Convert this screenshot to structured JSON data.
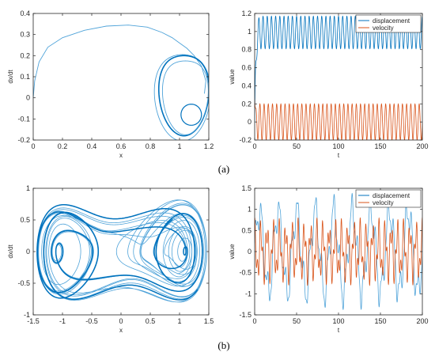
{
  "colors": {
    "blue": "#0072bd",
    "lightblue": "#4fa3d9",
    "orange": "#d95319",
    "axis": "#262626"
  },
  "row_labels": [
    "(a)",
    "(b)"
  ],
  "chart_data": [
    {
      "type": "line",
      "xlabel": "x",
      "ylabel": "dx/dt",
      "xlim": [
        0,
        1.2
      ],
      "ylim": [
        -0.2,
        0.4
      ],
      "xticks": [
        "0",
        "0.2",
        "0.4",
        "0.6",
        "0.8",
        "1",
        "1.2"
      ],
      "yticks": [
        "-0.2",
        "-0.1",
        "0",
        "0.1",
        "0.2",
        "0.3",
        "0.4"
      ],
      "series": [
        {
          "transient": {
            "x": [
              0,
              0.01,
              0.04,
              0.1,
              0.2,
              0.35,
              0.5,
              0.65,
              0.78,
              0.88,
              0.95,
              1.0,
              1.05,
              1.1,
              1.15,
              1.18,
              1.17
            ],
            "y": [
              0,
              0.08,
              0.17,
              0.24,
              0.285,
              0.32,
              0.34,
              0.345,
              0.335,
              0.31,
              0.285,
              0.26,
              0.235,
              0.2,
              0.15,
              0.08,
              0.02
            ]
          },
          "attractor": {
            "center": [
              1.02,
              0.03
            ],
            "rx": 0.17,
            "ry": 0.18,
            "inner_loop": [
              1.08,
              -0.06
            ]
          }
        }
      ]
    },
    {
      "type": "line",
      "xlabel": "t",
      "ylabel": "value",
      "xlim": [
        0,
        200
      ],
      "ylim": [
        -0.2,
        1.2
      ],
      "xticks": [
        "0",
        "50",
        "100",
        "150",
        "200"
      ],
      "yticks": [
        "-0.2",
        "0",
        "0.2",
        "0.4",
        "0.6",
        "0.8",
        "1",
        "1.2"
      ],
      "legend": "top-right",
      "series": [
        {
          "name": "displacement",
          "mean": 0.99,
          "amplitude": 0.18,
          "cycles": 40,
          "start": 0.0
        },
        {
          "name": "velocity",
          "mean": 0.0,
          "amplitude": 0.2,
          "cycles": 40,
          "start": 0.0
        }
      ]
    },
    {
      "type": "line",
      "xlabel": "x",
      "ylabel": "dx/dt",
      "xlim": [
        -1.5,
        1.5
      ],
      "ylim": [
        -1,
        1
      ],
      "xticks": [
        "-1.5",
        "-1",
        "-0.5",
        "0",
        "0.5",
        "1",
        "1.5"
      ],
      "yticks": [
        "-1",
        "-0.5",
        "0",
        "0.5",
        "1"
      ],
      "series": [
        {
          "description_points": {
            "left_lobe_center": [
              -1.0,
              0.0
            ],
            "right_lobe_center": [
              0.9,
              0.1
            ]
          }
        }
      ]
    },
    {
      "type": "line",
      "xlabel": "t",
      "ylabel": "value",
      "xlim": [
        0,
        200
      ],
      "ylim": [
        -1.5,
        1.5
      ],
      "xticks": [
        "0",
        "50",
        "100",
        "150",
        "200"
      ],
      "yticks": [
        "-1.5",
        "-1",
        "-0.5",
        "0",
        "0.5",
        "1",
        "1.5"
      ],
      "legend": "top-right",
      "series": [
        {
          "name": "displacement",
          "amplitude": 1.3,
          "cycles": 9
        },
        {
          "name": "velocity",
          "amplitude": 0.75,
          "cycles": 27
        }
      ]
    }
  ]
}
